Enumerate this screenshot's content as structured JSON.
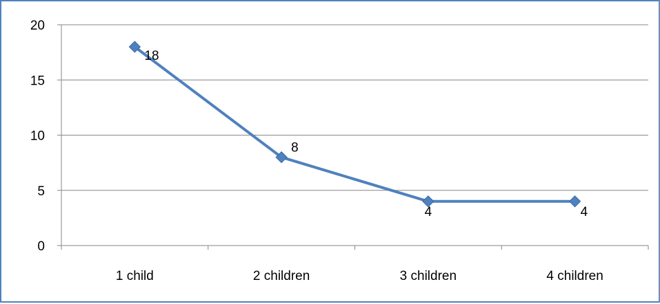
{
  "chart_data": {
    "type": "line",
    "title": "",
    "xlabel": "",
    "ylabel": "",
    "categories": [
      "1 child",
      "2 children",
      "3 children",
      "4 children"
    ],
    "series": [
      {
        "values": [
          18,
          8,
          4,
          4
        ],
        "color": "#4f81bd"
      }
    ],
    "data_labels": [
      "18",
      "8",
      "4",
      "4"
    ],
    "ylim": [
      0,
      20
    ],
    "yticks": [
      0,
      5,
      10,
      15,
      20
    ],
    "grid": true,
    "legend": "none",
    "marker": "diamond"
  }
}
